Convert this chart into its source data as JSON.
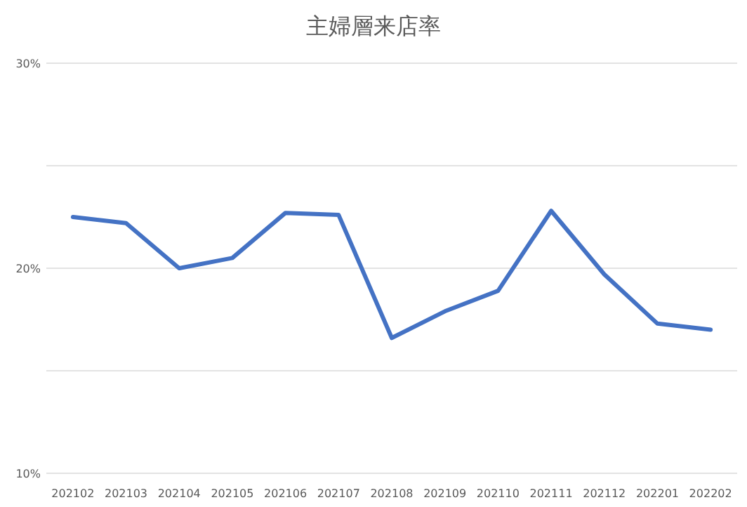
{
  "chart_data": {
    "type": "line",
    "title": "主婦層来店率",
    "categories": [
      "202102",
      "202103",
      "202104",
      "202105",
      "202106",
      "202107",
      "202108",
      "202109",
      "202110",
      "202111",
      "202112",
      "202201",
      "202202"
    ],
    "series": [
      {
        "color": "#4472c4",
        "values": [
          22.5,
          22.2,
          20.0,
          20.5,
          22.7,
          22.6,
          16.6,
          17.9,
          18.9,
          22.8,
          19.7,
          17.3,
          17.0
        ]
      }
    ],
    "ylim": [
      10,
      30
    ],
    "yticks": [
      {
        "value": 10,
        "label": "10%"
      },
      {
        "value": 15,
        "label": null
      },
      {
        "value": 20,
        "label": "20%"
      },
      {
        "value": 25,
        "label": null
      },
      {
        "value": 30,
        "label": "30%"
      }
    ],
    "grid": "y",
    "marker": "none",
    "line_style": "solid"
  }
}
